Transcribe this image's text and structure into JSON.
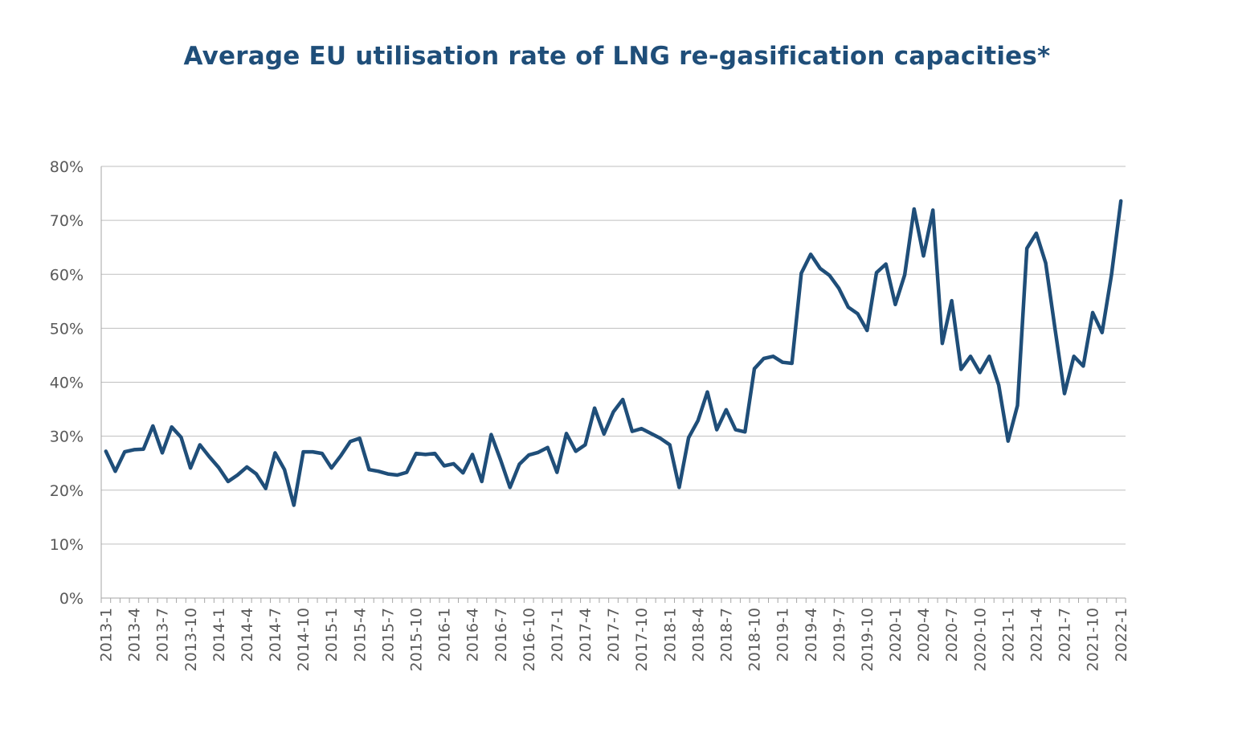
{
  "chart_data": {
    "type": "line",
    "title": "Average EU utilisation rate of LNG re-gasification capacities*",
    "xlabel": "",
    "ylabel": "",
    "ylim": [
      0,
      80
    ],
    "y_ticks": [
      "0%",
      "10%",
      "20%",
      "30%",
      "40%",
      "50%",
      "60%",
      "70%",
      "80%"
    ],
    "y_tick_values": [
      0,
      10,
      20,
      30,
      40,
      50,
      60,
      70,
      80
    ],
    "grid": true,
    "legend": "none",
    "colors": {
      "line": "#1f4e79",
      "title": "#1f4e79",
      "grid": "#bfbfbf",
      "tick": "#595959"
    },
    "x_tick_labels": [
      "2013-1",
      "2013-4",
      "2013-7",
      "2013-10",
      "2014-1",
      "2014-4",
      "2014-7",
      "2014-10",
      "2015-1",
      "2015-4",
      "2015-7",
      "2015-10",
      "2016-1",
      "2016-4",
      "2016-7",
      "2016-10",
      "2017-1",
      "2017-4",
      "2017-7",
      "2017-10",
      "2018-1",
      "2018-4",
      "2018-7",
      "2018-10",
      "2019-1",
      "2019-4",
      "2019-7",
      "2019-10",
      "2020-1",
      "2020-4",
      "2020-7",
      "2020-10",
      "2021-1",
      "2021-4",
      "2021-7",
      "2021-10",
      "2022-1"
    ],
    "x_tick_every": 3,
    "series": [
      {
        "name": "Utilisation rate",
        "values": [
          27.2,
          23.5,
          27.1,
          27.5,
          27.6,
          31.9,
          26.9,
          31.7,
          29.8,
          24.1,
          28.4,
          26.2,
          24.2,
          21.6,
          22.8,
          24.3,
          23.0,
          20.3,
          26.9,
          23.8,
          17.2,
          27.1,
          27.1,
          26.8,
          24.1,
          26.4,
          29.0,
          29.6,
          23.8,
          23.5,
          23.0,
          22.8,
          23.3,
          26.8,
          26.6,
          26.8,
          24.5,
          24.9,
          23.2,
          26.6,
          21.6,
          30.3,
          25.6,
          20.5,
          24.8,
          26.5,
          27.0,
          27.9,
          23.3,
          30.5,
          27.2,
          28.4,
          35.2,
          30.4,
          34.5,
          36.8,
          30.9,
          31.4,
          30.5,
          29.6,
          28.4,
          20.5,
          29.7,
          32.9,
          38.2,
          31.2,
          34.9,
          31.2,
          30.8,
          42.5,
          44.4,
          44.8,
          43.7,
          43.5,
          60.2,
          63.7,
          61.1,
          59.8,
          57.4,
          53.9,
          52.7,
          49.6,
          60.3,
          61.9,
          54.4,
          59.9,
          72.1,
          63.4,
          71.9,
          47.2,
          55.1,
          42.4,
          44.8,
          41.8,
          44.8,
          39.5,
          29.1,
          35.7,
          64.8,
          67.6,
          62.1,
          49.8,
          37.9,
          44.8,
          43.0,
          52.9,
          49.2,
          59.9,
          73.6
        ]
      }
    ]
  }
}
